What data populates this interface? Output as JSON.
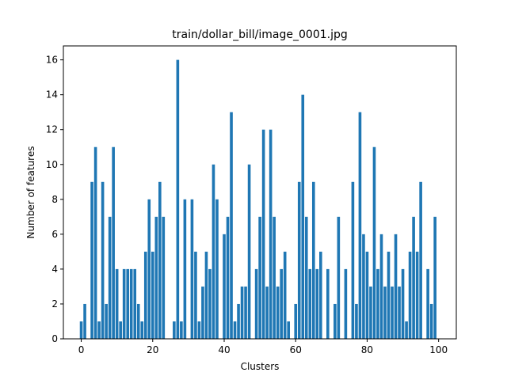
{
  "chart_data": {
    "type": "bar",
    "title": "train/dollar_bill/image_0001.jpg",
    "xlabel": "Clusters",
    "ylabel": "Number of features",
    "xlim": [
      -5.0,
      104.95
    ],
    "ylim": [
      0,
      16.8
    ],
    "xticks": [
      0,
      20,
      40,
      60,
      80,
      100
    ],
    "yticks": [
      0,
      2,
      4,
      6,
      8,
      10,
      12,
      14,
      16
    ],
    "grid": false,
    "bar_color": "#1f77b4",
    "x": [
      0,
      1,
      2,
      3,
      4,
      5,
      6,
      7,
      8,
      9,
      10,
      11,
      12,
      13,
      14,
      15,
      16,
      17,
      18,
      19,
      20,
      21,
      22,
      23,
      24,
      25,
      26,
      27,
      28,
      29,
      30,
      31,
      32,
      33,
      34,
      35,
      36,
      37,
      38,
      39,
      40,
      41,
      42,
      43,
      44,
      45,
      46,
      47,
      48,
      49,
      50,
      51,
      52,
      53,
      54,
      55,
      56,
      57,
      58,
      59,
      60,
      61,
      62,
      63,
      64,
      65,
      66,
      67,
      68,
      69,
      70,
      71,
      72,
      73,
      74,
      75,
      76,
      77,
      78,
      79,
      80,
      81,
      82,
      83,
      84,
      85,
      86,
      87,
      88,
      89,
      90,
      91,
      92,
      93,
      94,
      95,
      96,
      97,
      98,
      99
    ],
    "values": [
      1,
      2,
      0,
      9,
      11,
      1,
      9,
      2,
      7,
      11,
      4,
      1,
      4,
      4,
      4,
      4,
      2,
      1,
      5,
      8,
      5,
      7,
      9,
      7,
      0,
      0,
      1,
      16,
      1,
      8,
      0,
      8,
      5,
      1,
      3,
      5,
      4,
      10,
      8,
      0,
      6,
      7,
      13,
      1,
      2,
      3,
      3,
      10,
      0,
      4,
      7,
      12,
      3,
      12,
      7,
      3,
      4,
      5,
      1,
      0,
      2,
      9,
      14,
      7,
      4,
      9,
      4,
      5,
      0,
      4,
      0,
      2,
      7,
      0,
      4,
      0,
      9,
      2,
      13,
      6,
      5,
      3,
      11,
      4,
      6,
      3,
      5,
      3,
      6,
      3,
      4,
      1,
      5,
      7,
      5,
      9,
      0,
      4,
      2,
      7
    ]
  }
}
